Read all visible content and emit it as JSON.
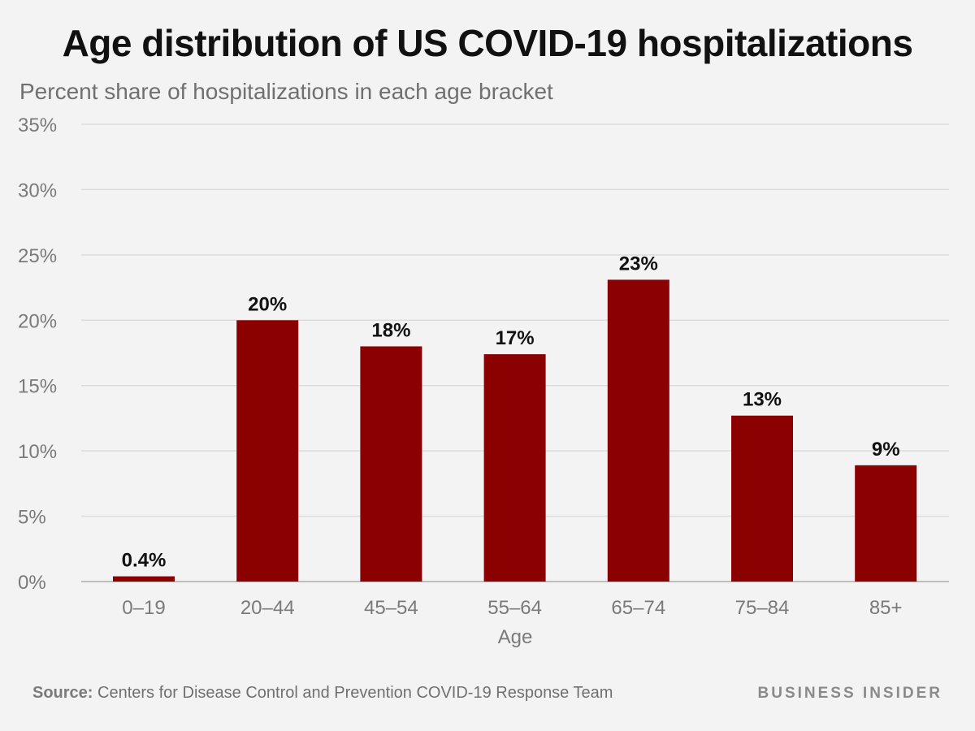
{
  "chart_data": {
    "type": "bar",
    "title": "Age distribution of US COVID-19 hospitalizations",
    "subtitle": "Percent share of hospitalizations in each age bracket",
    "xlabel": "Age",
    "ylabel": "",
    "categories": [
      "0–19",
      "20–44",
      "45–54",
      "55–64",
      "65–74",
      "75–84",
      "85+"
    ],
    "values": [
      0.4,
      20,
      18,
      17.4,
      23.1,
      12.7,
      8.9
    ],
    "value_labels": [
      "0.4%",
      "20%",
      "18%",
      "17%",
      "23%",
      "13%",
      "9%"
    ],
    "ylim": [
      0,
      35
    ],
    "yticks": [
      0,
      5,
      10,
      15,
      20,
      25,
      30,
      35
    ],
    "ytick_labels": [
      "0%",
      "5%",
      "10%",
      "15%",
      "20%",
      "25%",
      "30%",
      "35%"
    ],
    "grid": true,
    "bar_color": "#8b0000"
  },
  "footer": {
    "source_key": "Source:",
    "source_text": " Centers for Disease Control and Prevention COVID-19 Response Team",
    "brand": "BUSINESS INSIDER"
  }
}
